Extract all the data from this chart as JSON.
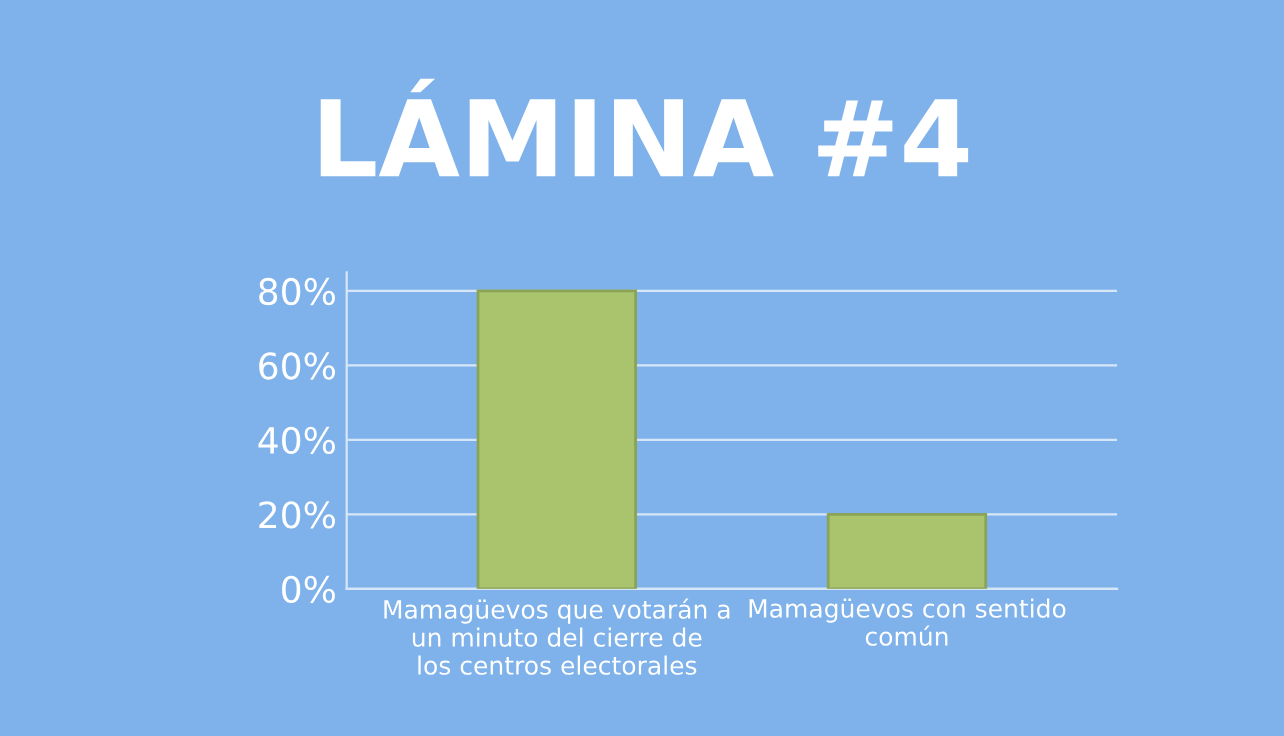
{
  "chart_data": {
    "type": "bar",
    "title": "LÁMINA #4",
    "categories": [
      "Mamagüevos que votarán a un minuto del cierre de los centros electorales",
      "Mamagüevos con sentido común"
    ],
    "values": [
      80,
      20
    ],
    "color": "#a9c46c",
    "ylim": [
      0,
      85
    ],
    "yticks": [
      {
        "value": 0,
        "label": "0%"
      },
      {
        "value": 20,
        "label": "20%"
      },
      {
        "value": 40,
        "label": "40%"
      },
      {
        "value": 60,
        "label": "60%"
      },
      {
        "value": 80,
        "label": "80%"
      }
    ],
    "grid": "y"
  }
}
